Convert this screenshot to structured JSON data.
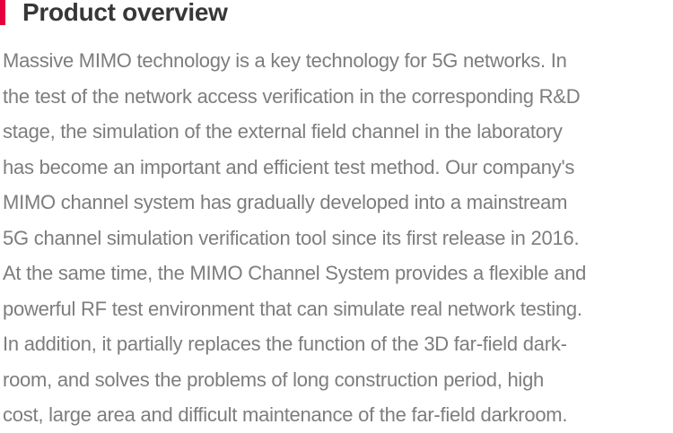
{
  "overview": {
    "title": "Product overview",
    "accent_color": "#e60040",
    "title_color": "#373737",
    "body_color": "#7d7d7d",
    "body_lines": [
      "Massive MIMO technology is a key technology for 5G networks. In",
      "the test of the network access verification in the corresponding R&D",
      "stage, the simulation of the external field channel in the laboratory",
      "has become an important and efficient test method. Our company's",
      "MIMO channel system has gradually developed into a mainstream",
      "5G channel simulation verification tool since its first release in 2016.",
      "At the same time, the MIMO Channel System provides a flexible and",
      "powerful RF test environment that can simulate real network testing.",
      "In addition, it partially replaces the function of the 3D far-field dark-",
      "room, and solves the problems of long construction period, high",
      "cost, large area and difficult maintenance of the far-field darkroom."
    ]
  }
}
